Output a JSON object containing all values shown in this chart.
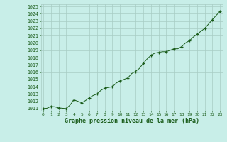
{
  "x_vals": [
    0,
    0.5,
    1.0,
    1.5,
    2.0,
    2.5,
    3.0,
    3.5,
    4.0,
    4.5,
    5.0,
    5.5,
    6.0,
    6.5,
    7.0,
    7.5,
    8.0,
    8.5,
    9.0,
    9.5,
    10.0,
    10.5,
    11.0,
    11.5,
    12.0,
    12.5,
    13.0,
    13.5,
    14.0,
    14.5,
    15.0,
    15.5,
    16.0,
    16.5,
    17.0,
    17.5,
    18.0,
    18.5,
    19.0,
    19.5,
    20.0,
    20.5,
    21.0,
    21.5,
    22.0,
    22.5,
    23.0
  ],
  "y_vals": [
    1011.0,
    1011.05,
    1011.3,
    1011.25,
    1011.1,
    1011.05,
    1011.0,
    1011.5,
    1012.2,
    1012.0,
    1011.8,
    1012.1,
    1012.5,
    1012.8,
    1013.0,
    1013.5,
    1013.8,
    1013.9,
    1014.0,
    1014.5,
    1014.8,
    1015.0,
    1015.2,
    1015.8,
    1016.1,
    1016.5,
    1017.2,
    1017.8,
    1018.3,
    1018.6,
    1018.7,
    1018.8,
    1018.8,
    1019.0,
    1019.2,
    1019.2,
    1019.5,
    1020.0,
    1020.3,
    1020.8,
    1021.2,
    1021.6,
    1022.0,
    1022.6,
    1023.2,
    1023.8,
    1024.3
  ],
  "marker_x": [
    0,
    1,
    2,
    3,
    4,
    5,
    6,
    7,
    8,
    9,
    10,
    11,
    12,
    13,
    14,
    15,
    16,
    17,
    18,
    19,
    20,
    21,
    22,
    23
  ],
  "marker_y": [
    1011.0,
    1011.3,
    1011.1,
    1011.0,
    1012.2,
    1011.8,
    1012.5,
    1013.0,
    1013.8,
    1014.0,
    1014.8,
    1015.2,
    1016.1,
    1017.2,
    1018.3,
    1018.7,
    1018.8,
    1019.2,
    1019.5,
    1020.3,
    1021.2,
    1022.0,
    1023.2,
    1024.3
  ],
  "line_color": "#1a5c1a",
  "marker_color": "#1a5c1a",
  "bg_color": "#c8eee8",
  "grid_color": "#a8ccc4",
  "text_color": "#1a5c1a",
  "ylim_min": 1011,
  "ylim_max": 1025,
  "xlim_min": 0,
  "xlim_max": 23,
  "xlabel": "Graphe pression niveau de la mer (hPa)",
  "xtick_labels": [
    "0",
    "1",
    "2",
    "3",
    "4",
    "5",
    "6",
    "7",
    "8",
    "9",
    "10",
    "11",
    "12",
    "13",
    "14",
    "15",
    "16",
    "17",
    "18",
    "19",
    "20",
    "21",
    "22",
    "23"
  ]
}
